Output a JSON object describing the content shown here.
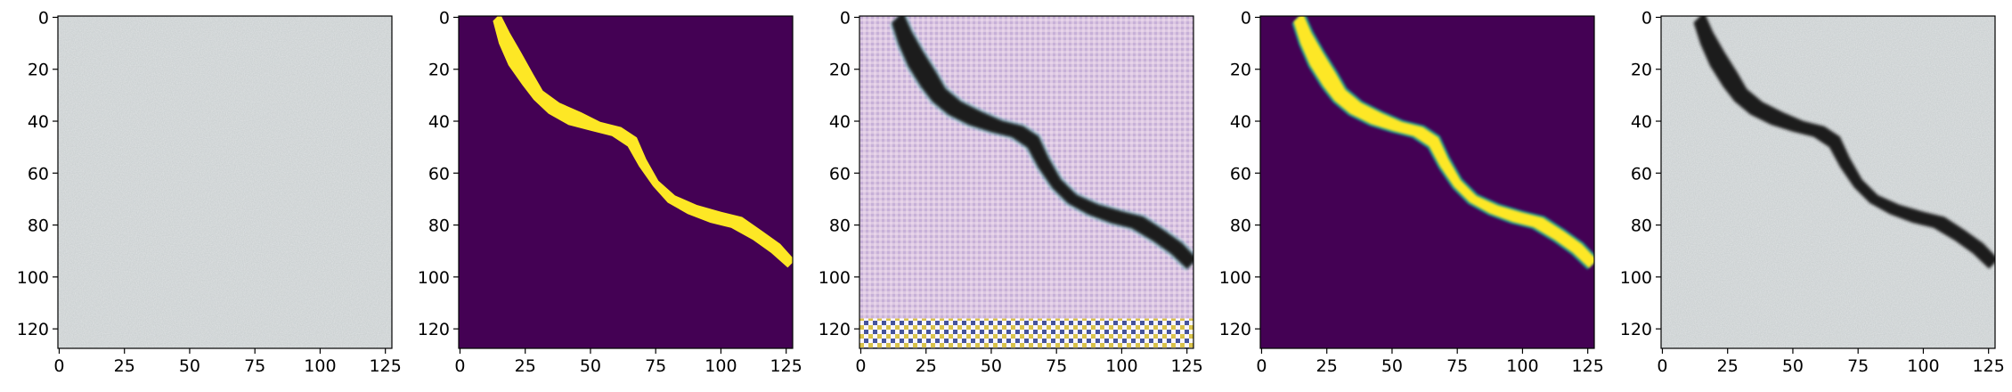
{
  "figure": {
    "panel_count": 5,
    "axis_range": {
      "x": [
        0,
        127
      ],
      "y": [
        0,
        127
      ]
    },
    "x_ticks": [
      0,
      25,
      50,
      75,
      100,
      125
    ],
    "y_ticks": [
      0,
      20,
      40,
      60,
      80,
      100,
      120
    ],
    "x_tick_labels": [
      "0",
      "25",
      "50",
      "75",
      "100",
      "125"
    ],
    "y_tick_labels": [
      "0",
      "20",
      "40",
      "60",
      "80",
      "100",
      "120"
    ],
    "panels": [
      {
        "kind": "concrete-surface-no-crack"
      },
      {
        "kind": "binary-crack-mask"
      },
      {
        "kind": "generated-crack-image"
      },
      {
        "kind": "soft-crack-mask"
      },
      {
        "kind": "concrete-surface-with-crack"
      }
    ],
    "colors": {
      "mask_background": "#440154",
      "mask_foreground": "#fde725",
      "mask_edge": "#21918c",
      "concrete": "#cdd2d3",
      "crack": "#1a1a1a"
    }
  }
}
